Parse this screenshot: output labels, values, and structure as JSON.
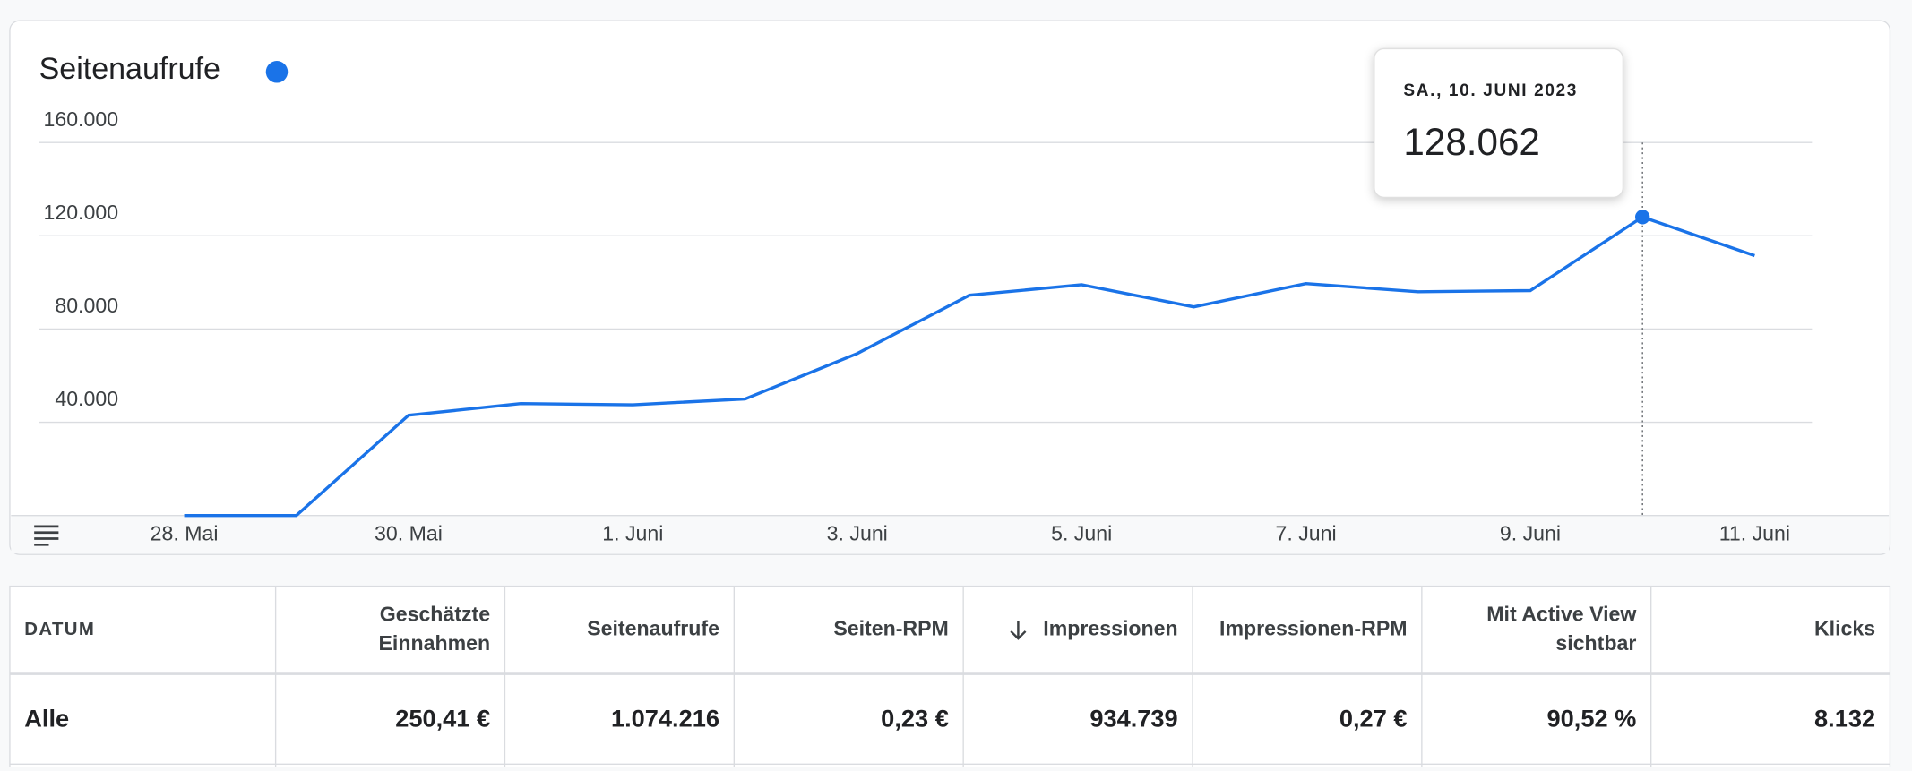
{
  "chart_data": {
    "type": "line",
    "title": "Seitenaufrufe",
    "categories": [
      "28. Mai",
      null,
      "30. Mai",
      null,
      "1. Juni",
      null,
      "3. Juni",
      null,
      "5. Juni",
      null,
      "7. Juni",
      null,
      "9. Juni",
      null,
      "11. Juni"
    ],
    "series": [
      {
        "name": "Seitenaufrufe",
        "color": "#1a73e8",
        "values": [
          0,
          0,
          43000,
          48000,
          47500,
          50000,
          69500,
          94500,
          99000,
          89500,
          99500,
          96000,
          96500,
          128062,
          111500
        ]
      }
    ],
    "ylim": [
      0,
      160000
    ],
    "yticks": [
      {
        "value": 40000,
        "label": "40.000"
      },
      {
        "value": 80000,
        "label": "80.000"
      },
      {
        "value": 120000,
        "label": "120.000"
      },
      {
        "value": 160000,
        "label": "160.000"
      }
    ],
    "grid": true,
    "tooltip": {
      "title": "SA., 10. JUNI 2023",
      "value": "128.062"
    }
  },
  "table": {
    "headers": [
      [
        "DATUM"
      ],
      [
        "Geschätzte",
        "Einnahmen"
      ],
      [
        "Seitenaufrufe"
      ],
      [
        "Seiten-RPM"
      ],
      [
        "Impressionen"
      ],
      [
        "Impressionen-RPM"
      ],
      [
        "Mit Active View",
        "sichtbar"
      ],
      [
        "Klicks"
      ]
    ],
    "rows": [
      [
        "Alle",
        "250,41 €",
        "1.074.216",
        "0,23 €",
        "934.739",
        "0,27 €",
        "90,52 %",
        "8.132"
      ]
    ]
  }
}
